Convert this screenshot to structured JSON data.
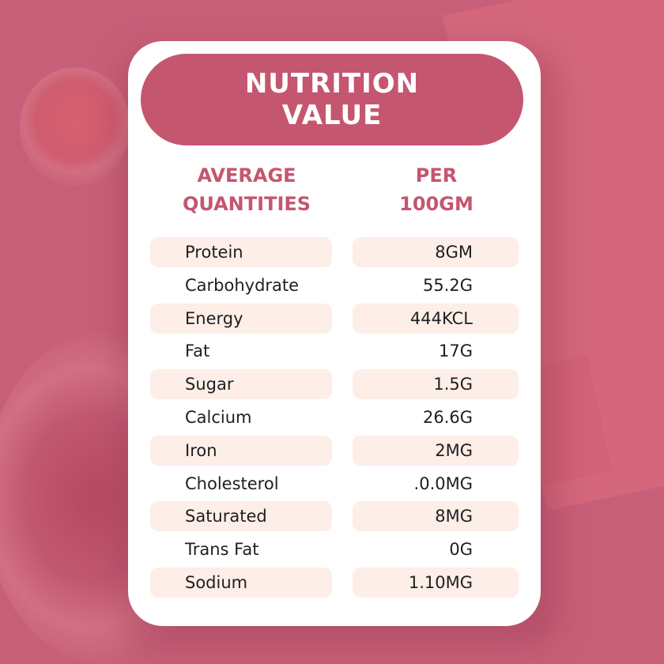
{
  "title": {
    "line1": "NUTRITION",
    "line2": "VALUE"
  },
  "headers": {
    "left": {
      "line1": "AVERAGE",
      "line2": "QUANTITIES"
    },
    "right": {
      "line1": "PER",
      "line2": "100GM"
    }
  },
  "rows": [
    {
      "label": "Protein",
      "value": "8GM",
      "shaded": true
    },
    {
      "label": "Carbohydrate",
      "value": "55.2G",
      "shaded": false
    },
    {
      "label": "Energy",
      "value": "444KCL",
      "shaded": true
    },
    {
      "label": "Fat",
      "value": "17G",
      "shaded": false
    },
    {
      "label": "Sugar",
      "value": "1.5G",
      "shaded": true
    },
    {
      "label": "Calcium",
      "value": "26.6G",
      "shaded": false
    },
    {
      "label": "Iron",
      "value": "2MG",
      "shaded": true
    },
    {
      "label": "Cholesterol",
      "value": ".0.0MG",
      "shaded": false
    },
    {
      "label": "Saturated",
      "value": "8MG",
      "shaded": true
    },
    {
      "label": "Trans Fat",
      "value": "0G",
      "shaded": false
    },
    {
      "label": "Sodium",
      "value": "1.10MG",
      "shaded": true
    }
  ],
  "colors": {
    "background": "#c85f78",
    "accent": "#c5566f",
    "row_shade": "#fdeee8",
    "card": "#ffffff",
    "text": "#1f1f1f"
  }
}
